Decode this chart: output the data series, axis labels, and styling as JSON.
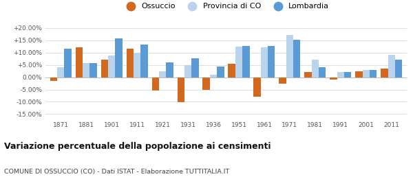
{
  "years": [
    1871,
    1881,
    1901,
    1911,
    1921,
    1931,
    1936,
    1951,
    1961,
    1971,
    1981,
    1991,
    2001,
    2011
  ],
  "ossuccio": [
    -1.5,
    12.2,
    7.0,
    11.5,
    -5.5,
    -10.2,
    -5.0,
    5.5,
    -7.8,
    -2.5,
    2.0,
    -1.0,
    2.5,
    3.5
  ],
  "provincia_co": [
    4.0,
    5.8,
    8.8,
    10.0,
    2.5,
    5.0,
    1.0,
    12.5,
    12.2,
    17.2,
    7.2,
    2.0,
    3.0,
    9.0
  ],
  "lombardia": [
    11.5,
    5.7,
    15.7,
    13.2,
    6.0,
    7.8,
    4.3,
    12.7,
    12.8,
    15.2,
    4.0,
    2.0,
    3.0,
    7.2
  ],
  "color_ossuccio": "#d2691e",
  "color_provincia": "#bad4ee",
  "color_lombardia": "#5b9bd5",
  "title": "Variazione percentuale della popolazione ai censimenti",
  "subtitle": "COMUNE DI OSSUCCIO (CO) - Dati ISTAT - Elaborazione TUTTITALIA.IT",
  "ylim_min": -17,
  "ylim_max": 22,
  "ytick_vals": [
    -15,
    -10,
    -5,
    0,
    5,
    10,
    15,
    20
  ],
  "ytick_labels": [
    "-15.00%",
    "-10.00%",
    "-5.00%",
    "0.00%",
    "+5.00%",
    "+10.00%",
    "+15.00%",
    "+20.00%"
  ],
  "legend_ossuccio": "Ossuccio",
  "legend_provincia": "Provincia di CO",
  "legend_lombardia": "Lombardia",
  "bar_width": 0.28,
  "background_color": "#ffffff",
  "grid_color": "#d8d8d8"
}
